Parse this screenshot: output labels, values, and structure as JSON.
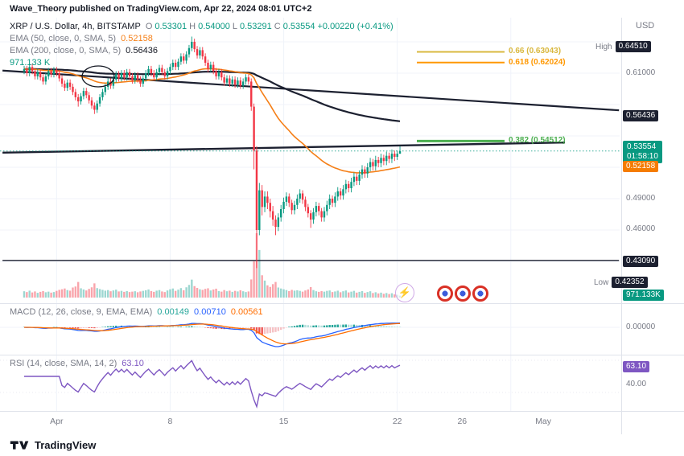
{
  "attribution": "Wave_Theory published on TradingView.com, Apr 22, 2024 08:01 UTC+2",
  "symbol_row": {
    "title": "XRP / U.S. Dollar, 4h, BITSTAMP",
    "o_label": "O",
    "o": "0.53301",
    "h_label": "H",
    "h": "0.54000",
    "l_label": "L",
    "l": "0.53291",
    "c_label": "C",
    "c": "0.53554",
    "change": "+0.00220 (+0.41%)"
  },
  "indicators": {
    "ema50": {
      "label": "EMA (50, close, 0, SMA, 5)",
      "value": "0.52158"
    },
    "ema200": {
      "label": "EMA (200, close, 0, SMA, 5)",
      "value": "0.56436"
    },
    "volume": {
      "value": "971.133 K"
    },
    "macd": {
      "label": "MACD (12, 26, close, 9, EMA, EMA)",
      "hist": "0.00149",
      "macd": "0.00710",
      "signal": "0.00561"
    },
    "rsi": {
      "label": "RSI (14, close, SMA, 14, 2)",
      "value": "63.10"
    }
  },
  "right_axis": {
    "currency": "USD",
    "high_label": "High",
    "high": "0.64510",
    "p61": "0.61000",
    "ema200": "0.56436",
    "last": "0.53554",
    "countdown": "01:58:10",
    "ema50": "0.52158",
    "p49": "0.49000",
    "p46": "0.46000",
    "level": "0.43090",
    "low_label": "Low",
    "low": "0.42352",
    "volume": "971.133K",
    "macd_zero": "0.00000",
    "rsi_value": "63.10",
    "rsi_40": "40.00"
  },
  "time_axis": {
    "labels": [
      {
        "text": "Apr",
        "i": 12
      },
      {
        "text": "8",
        "i": 54
      },
      {
        "text": "15",
        "i": 96
      },
      {
        "text": "22",
        "i": 138
      },
      {
        "text": "26",
        "i": 162
      },
      {
        "text": "May",
        "i": 192
      }
    ]
  },
  "icons": {
    "lightning": "⚡"
  },
  "footer": {
    "brand": "TradingView"
  },
  "chart_data": {
    "type": "candlestick",
    "symbol": "XRP/USD",
    "interval": "4h",
    "exchange": "BITSTAMP",
    "last_price": 0.53554,
    "high": 0.6451,
    "low": 0.42352,
    "grid": {
      "v_index": [
        12,
        54,
        96,
        138,
        180
      ],
      "h_price": [
        0.64,
        0.61,
        0.58,
        0.55,
        0.52,
        0.49,
        0.46,
        0.43
      ]
    },
    "fib_levels": [
      {
        "label": "0.66 (0.63043)",
        "price": 0.63043,
        "color": "#d9b83f",
        "w": 2
      },
      {
        "label": "0.618 (0.62024)",
        "price": 0.62024,
        "color": "#ff9800",
        "w": 2
      },
      {
        "label": "0.382 (0.54512)",
        "price": 0.54512,
        "color": "#4caf50",
        "w": 3
      }
    ],
    "trendlines": [
      {
        "i1": -8,
        "p1": 0.6125,
        "i2": 220,
        "p2": 0.5745,
        "w": 2.2
      },
      {
        "i1": -8,
        "p1": 0.534,
        "i2": 200,
        "p2": 0.5437,
        "w": 2.4
      },
      {
        "i1": -8,
        "p1": 0.4309,
        "i2": 220,
        "p2": 0.4309,
        "w": 1.4
      }
    ],
    "candles_format": [
      "open",
      "high",
      "low",
      "close",
      "volume_k"
    ],
    "candles": [
      [
        0.612,
        0.617,
        0.609,
        0.614,
        3200
      ],
      [
        0.614,
        0.617,
        0.607,
        0.61,
        2800
      ],
      [
        0.61,
        0.619,
        0.607,
        0.616,
        3500
      ],
      [
        0.616,
        0.619,
        0.609,
        0.612,
        2600
      ],
      [
        0.612,
        0.615,
        0.604,
        0.607,
        3100
      ],
      [
        0.607,
        0.614,
        0.604,
        0.611,
        2400
      ],
      [
        0.611,
        0.614,
        0.603,
        0.606,
        2900
      ],
      [
        0.606,
        0.609,
        0.599,
        0.602,
        3300
      ],
      [
        0.602,
        0.61,
        0.599,
        0.607,
        2700
      ],
      [
        0.607,
        0.615,
        0.604,
        0.612,
        3000
      ],
      [
        0.612,
        0.615,
        0.606,
        0.609,
        2500
      ],
      [
        0.609,
        0.616,
        0.606,
        0.613,
        2800
      ],
      [
        0.613,
        0.616,
        0.607,
        0.61,
        3400
      ],
      [
        0.61,
        0.613,
        0.602,
        0.605,
        3900
      ],
      [
        0.605,
        0.608,
        0.597,
        0.6,
        4200
      ],
      [
        0.6,
        0.603,
        0.593,
        0.596,
        4600
      ],
      [
        0.596,
        0.604,
        0.593,
        0.601,
        3800
      ],
      [
        0.601,
        0.604,
        0.594,
        0.597,
        3500
      ],
      [
        0.597,
        0.6,
        0.589,
        0.592,
        5100
      ],
      [
        0.592,
        0.595,
        0.584,
        0.587,
        5600
      ],
      [
        0.587,
        0.59,
        0.578,
        0.583,
        7900
      ],
      [
        0.583,
        0.591,
        0.58,
        0.588,
        4700
      ],
      [
        0.588,
        0.596,
        0.585,
        0.593,
        4100
      ],
      [
        0.593,
        0.596,
        0.586,
        0.589,
        3600
      ],
      [
        0.589,
        0.592,
        0.581,
        0.584,
        4400
      ],
      [
        0.584,
        0.587,
        0.576,
        0.579,
        5200
      ],
      [
        0.579,
        0.582,
        0.571,
        0.575,
        7200
      ],
      [
        0.575,
        0.584,
        0.572,
        0.581,
        4800
      ],
      [
        0.581,
        0.59,
        0.578,
        0.587,
        4300
      ],
      [
        0.587,
        0.595,
        0.584,
        0.592,
        3900
      ],
      [
        0.592,
        0.6,
        0.589,
        0.597,
        3500
      ],
      [
        0.597,
        0.605,
        0.594,
        0.602,
        3800
      ],
      [
        0.602,
        0.605,
        0.595,
        0.598,
        3200
      ],
      [
        0.598,
        0.607,
        0.595,
        0.604,
        3600
      ],
      [
        0.604,
        0.612,
        0.601,
        0.609,
        4000
      ],
      [
        0.609,
        0.612,
        0.602,
        0.605,
        3100
      ],
      [
        0.605,
        0.613,
        0.602,
        0.61,
        3400
      ],
      [
        0.61,
        0.613,
        0.603,
        0.606,
        2900
      ],
      [
        0.606,
        0.614,
        0.603,
        0.611,
        3300
      ],
      [
        0.611,
        0.614,
        0.604,
        0.607,
        2800
      ],
      [
        0.607,
        0.61,
        0.6,
        0.603,
        3000
      ],
      [
        0.603,
        0.611,
        0.6,
        0.608,
        3200
      ],
      [
        0.608,
        0.611,
        0.601,
        0.604,
        2700
      ],
      [
        0.604,
        0.607,
        0.597,
        0.6,
        3100
      ],
      [
        0.6,
        0.608,
        0.597,
        0.605,
        3400
      ],
      [
        0.605,
        0.613,
        0.602,
        0.61,
        3700
      ],
      [
        0.61,
        0.617,
        0.607,
        0.614,
        4100
      ],
      [
        0.614,
        0.617,
        0.607,
        0.61,
        3300
      ],
      [
        0.61,
        0.613,
        0.603,
        0.606,
        2900
      ],
      [
        0.606,
        0.614,
        0.603,
        0.611,
        3500
      ],
      [
        0.611,
        0.618,
        0.608,
        0.615,
        3800
      ],
      [
        0.615,
        0.618,
        0.608,
        0.611,
        3100
      ],
      [
        0.611,
        0.614,
        0.604,
        0.607,
        2800
      ],
      [
        0.607,
        0.615,
        0.604,
        0.612,
        3600
      ],
      [
        0.612,
        0.619,
        0.609,
        0.616,
        4200
      ],
      [
        0.616,
        0.623,
        0.613,
        0.62,
        4600
      ],
      [
        0.62,
        0.623,
        0.613,
        0.616,
        3400
      ],
      [
        0.616,
        0.624,
        0.613,
        0.621,
        4000
      ],
      [
        0.621,
        0.629,
        0.618,
        0.626,
        4800
      ],
      [
        0.626,
        0.629,
        0.619,
        0.622,
        3700
      ],
      [
        0.622,
        0.631,
        0.619,
        0.628,
        5200
      ],
      [
        0.628,
        0.637,
        0.625,
        0.634,
        6400
      ],
      [
        0.634,
        0.645,
        0.631,
        0.64,
        9100
      ],
      [
        0.64,
        0.643,
        0.63,
        0.633,
        5800
      ],
      [
        0.633,
        0.636,
        0.624,
        0.627,
        4900
      ],
      [
        0.627,
        0.635,
        0.624,
        0.632,
        4200
      ],
      [
        0.632,
        0.635,
        0.623,
        0.626,
        3900
      ],
      [
        0.626,
        0.629,
        0.617,
        0.62,
        4400
      ],
      [
        0.62,
        0.623,
        0.611,
        0.614,
        4700
      ],
      [
        0.614,
        0.621,
        0.611,
        0.618,
        3600
      ],
      [
        0.618,
        0.621,
        0.609,
        0.612,
        4100
      ],
      [
        0.612,
        0.615,
        0.604,
        0.607,
        4500
      ],
      [
        0.607,
        0.614,
        0.604,
        0.611,
        3300
      ],
      [
        0.611,
        0.614,
        0.603,
        0.606,
        3000
      ],
      [
        0.606,
        0.609,
        0.598,
        0.601,
        3800
      ],
      [
        0.601,
        0.608,
        0.598,
        0.605,
        3200
      ],
      [
        0.605,
        0.608,
        0.597,
        0.6,
        3500
      ],
      [
        0.6,
        0.607,
        0.597,
        0.604,
        2900
      ],
      [
        0.604,
        0.607,
        0.596,
        0.599,
        3400
      ],
      [
        0.599,
        0.606,
        0.596,
        0.603,
        3100
      ],
      [
        0.603,
        0.606,
        0.595,
        0.598,
        3700
      ],
      [
        0.598,
        0.605,
        0.595,
        0.602,
        3200
      ],
      [
        0.602,
        0.609,
        0.599,
        0.606,
        2800
      ],
      [
        0.606,
        0.609,
        0.599,
        0.602,
        3100
      ],
      [
        0.602,
        0.605,
        0.574,
        0.578,
        9200
      ],
      [
        0.578,
        0.581,
        0.518,
        0.536,
        18400
      ],
      [
        0.536,
        0.54,
        0.42352,
        0.46,
        32600
      ],
      [
        0.46,
        0.505,
        0.455,
        0.498,
        24100
      ],
      [
        0.498,
        0.503,
        0.474,
        0.482,
        11300
      ],
      [
        0.482,
        0.497,
        0.477,
        0.492,
        8600
      ],
      [
        0.492,
        0.497,
        0.48,
        0.486,
        6200
      ],
      [
        0.486,
        0.49,
        0.472,
        0.478,
        5400
      ],
      [
        0.478,
        0.483,
        0.464,
        0.47,
        6800
      ],
      [
        0.47,
        0.474,
        0.4551,
        0.463,
        7900
      ],
      [
        0.463,
        0.476,
        0.459,
        0.472,
        5100
      ],
      [
        0.472,
        0.484,
        0.468,
        0.48,
        4600
      ],
      [
        0.48,
        0.491,
        0.476,
        0.487,
        4200
      ],
      [
        0.487,
        0.496,
        0.483,
        0.492,
        3800
      ],
      [
        0.492,
        0.495,
        0.482,
        0.486,
        3300
      ],
      [
        0.486,
        0.489,
        0.475,
        0.479,
        3900
      ],
      [
        0.479,
        0.488,
        0.475,
        0.484,
        3500
      ],
      [
        0.484,
        0.494,
        0.48,
        0.49,
        3700
      ],
      [
        0.49,
        0.499,
        0.486,
        0.495,
        3400
      ],
      [
        0.495,
        0.498,
        0.485,
        0.489,
        3000
      ],
      [
        0.489,
        0.492,
        0.478,
        0.482,
        3600
      ],
      [
        0.482,
        0.485,
        0.472,
        0.476,
        4100
      ],
      [
        0.476,
        0.479,
        0.462,
        0.47,
        5300
      ],
      [
        0.47,
        0.481,
        0.466,
        0.477,
        3800
      ],
      [
        0.477,
        0.487,
        0.473,
        0.483,
        3200
      ],
      [
        0.483,
        0.486,
        0.474,
        0.478,
        2900
      ],
      [
        0.478,
        0.481,
        0.468,
        0.472,
        3300
      ],
      [
        0.472,
        0.482,
        0.468,
        0.478,
        3000
      ],
      [
        0.478,
        0.488,
        0.474,
        0.484,
        3400
      ],
      [
        0.484,
        0.494,
        0.48,
        0.49,
        3600
      ],
      [
        0.49,
        0.493,
        0.482,
        0.486,
        2800
      ],
      [
        0.486,
        0.496,
        0.482,
        0.492,
        3100
      ],
      [
        0.492,
        0.501,
        0.488,
        0.497,
        3500
      ],
      [
        0.497,
        0.5,
        0.489,
        0.493,
        2700
      ],
      [
        0.493,
        0.503,
        0.489,
        0.499,
        3200
      ],
      [
        0.499,
        0.508,
        0.495,
        0.504,
        3600
      ],
      [
        0.504,
        0.507,
        0.496,
        0.5,
        2600
      ],
      [
        0.5,
        0.51,
        0.496,
        0.506,
        3000
      ],
      [
        0.506,
        0.515,
        0.502,
        0.511,
        3400
      ],
      [
        0.511,
        0.514,
        0.503,
        0.507,
        2500
      ],
      [
        0.507,
        0.517,
        0.503,
        0.513,
        2900
      ],
      [
        0.513,
        0.522,
        0.509,
        0.518,
        3300
      ],
      [
        0.518,
        0.521,
        0.51,
        0.514,
        2400
      ],
      [
        0.514,
        0.524,
        0.51,
        0.52,
        2800
      ],
      [
        0.52,
        0.529,
        0.516,
        0.525,
        3200
      ],
      [
        0.525,
        0.528,
        0.517,
        0.521,
        2300
      ],
      [
        0.521,
        0.531,
        0.517,
        0.527,
        2700
      ],
      [
        0.527,
        0.53,
        0.52,
        0.524,
        2100
      ],
      [
        0.524,
        0.533,
        0.52,
        0.529,
        2500
      ],
      [
        0.529,
        0.532,
        0.522,
        0.526,
        1900
      ],
      [
        0.526,
        0.535,
        0.522,
        0.531,
        2300
      ],
      [
        0.531,
        0.534,
        0.524,
        0.528,
        1800
      ],
      [
        0.528,
        0.537,
        0.524,
        0.533,
        2200
      ],
      [
        0.533,
        0.536,
        0.526,
        0.53,
        1600
      ],
      [
        0.53,
        0.536,
        0.527,
        0.533,
        1400
      ],
      [
        0.53301,
        0.54,
        0.53291,
        0.53554,
        971.133
      ]
    ]
  }
}
